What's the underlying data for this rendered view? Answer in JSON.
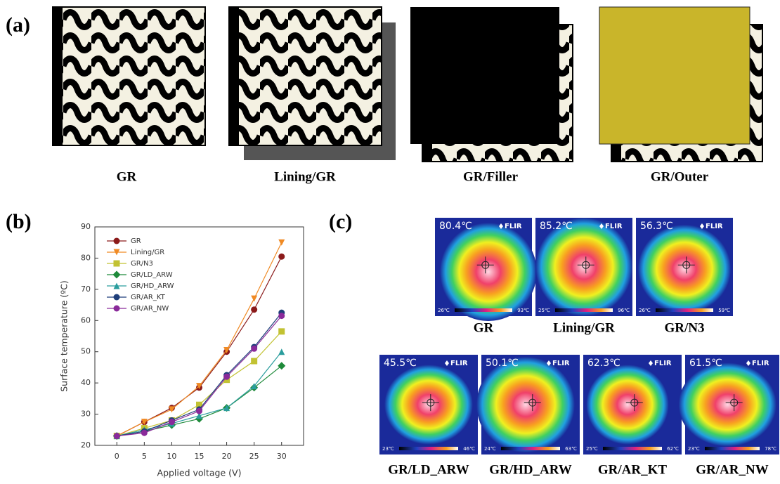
{
  "panel_a": {
    "label": "(a)",
    "items": [
      "GR",
      "Lining/GR",
      "GR/Filler",
      "GR/Outer"
    ]
  },
  "panel_b": {
    "label": "(b)"
  },
  "chart_data": {
    "type": "line",
    "xlabel": "Applied voltage (V)",
    "ylabel": "Surface temperature (ºC)",
    "x": [
      0,
      5,
      10,
      15,
      20,
      25,
      30
    ],
    "xlim": [
      -4,
      34
    ],
    "ylim": [
      20,
      90
    ],
    "xticks": [
      0,
      5,
      10,
      15,
      20,
      25,
      30
    ],
    "yticks": [
      20,
      30,
      40,
      50,
      60,
      70,
      80,
      90
    ],
    "series": [
      {
        "name": "GR",
        "color": "#8b1a1a",
        "marker": "circle",
        "values": [
          23,
          27.5,
          32,
          38.5,
          50,
          63.5,
          80.5
        ]
      },
      {
        "name": "Lining/GR",
        "color": "#f08a24",
        "marker": "triangle-down",
        "values": [
          23,
          27.5,
          31.5,
          39,
          50.5,
          67,
          85
        ]
      },
      {
        "name": "GR/N3",
        "color": "#c2c232",
        "marker": "square",
        "values": [
          23,
          25.5,
          28,
          33,
          41,
          47,
          56.5
        ]
      },
      {
        "name": "GR/LD_ARW",
        "color": "#1e8a3a",
        "marker": "diamond",
        "values": [
          23,
          24.5,
          26.5,
          28.5,
          32,
          38.5,
          45.5
        ]
      },
      {
        "name": "GR/HD_ARW",
        "color": "#2a9d9d",
        "marker": "triangle-up",
        "values": [
          23,
          25,
          27,
          29.5,
          32,
          39,
          50
        ]
      },
      {
        "name": "GR/AR_KT",
        "color": "#1f3f7a",
        "marker": "circle",
        "values": [
          23,
          24.5,
          28,
          31.5,
          42.5,
          51.5,
          62.5
        ]
      },
      {
        "name": "GR/AR_NW",
        "color": "#8a2a9a",
        "marker": "circle",
        "values": [
          23,
          24,
          27.5,
          31,
          42,
          51,
          61.5
        ]
      }
    ]
  },
  "panel_c": {
    "label": "(c)",
    "brand": "FLIR",
    "images": [
      {
        "name": "GR",
        "temp": "80.4℃",
        "scale_min": "26℃",
        "scale_max": "93℃"
      },
      {
        "name": "Lining/GR",
        "temp": "85.2℃",
        "scale_min": "25℃",
        "scale_max": "96℃"
      },
      {
        "name": "GR/N3",
        "temp": "56.3℃",
        "scale_min": "26℃",
        "scale_max": "59℃"
      },
      {
        "name": "GR/LD_ARW",
        "temp": "45.5℃",
        "scale_min": "23℃",
        "scale_max": "46℃"
      },
      {
        "name": "GR/HD_ARW",
        "temp": "50.1℃",
        "scale_min": "24℃",
        "scale_max": "63℃"
      },
      {
        "name": "GR/AR_KT",
        "temp": "62.3℃",
        "scale_min": "25℃",
        "scale_max": "62℃"
      },
      {
        "name": "GR/AR_NW",
        "temp": "61.5℃",
        "scale_min": "23℃",
        "scale_max": "78℃"
      }
    ]
  }
}
